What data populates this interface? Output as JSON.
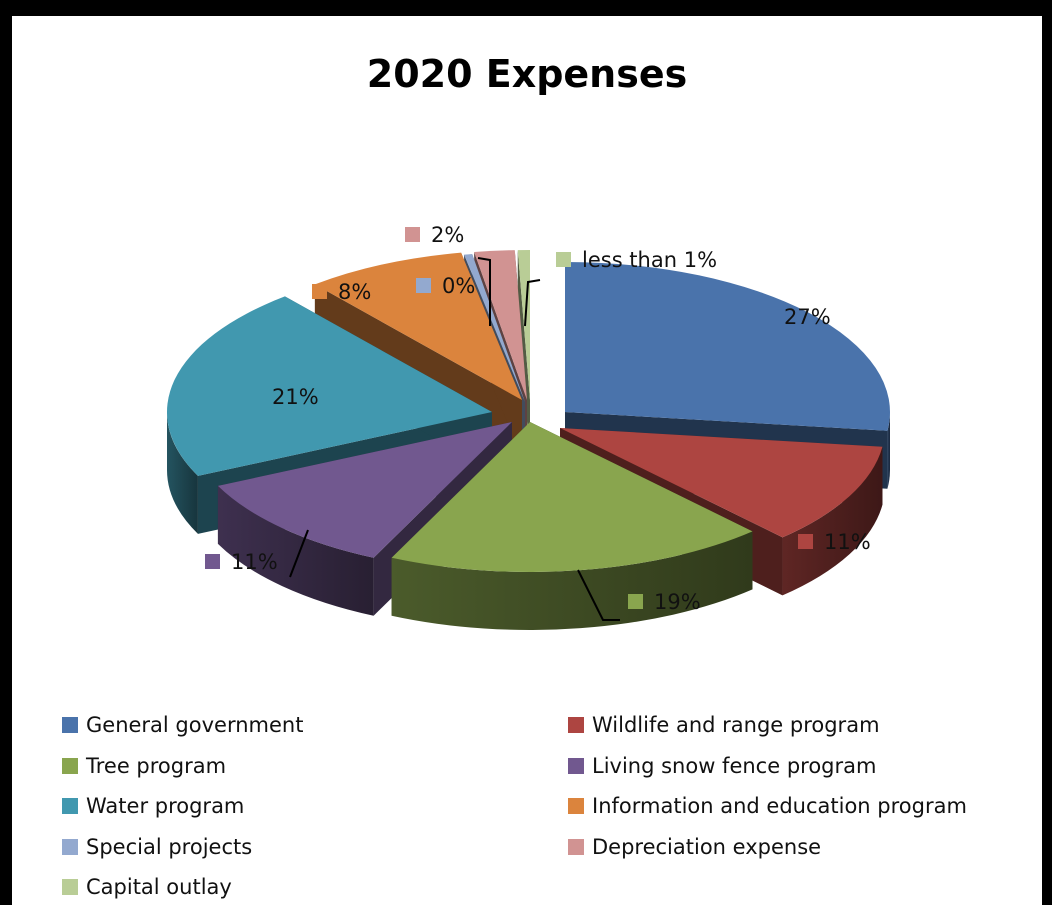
{
  "chart_data": {
    "type": "pie",
    "title": "2020 Expenses",
    "slices": [
      {
        "name": "General government",
        "value": 27,
        "label": "27%",
        "color": "#4A73AB"
      },
      {
        "name": "Wildlife and range program",
        "value": 11,
        "label": "11%",
        "color": "#AD4541"
      },
      {
        "name": "Tree program",
        "value": 19,
        "label": "19%",
        "color": "#89A54E"
      },
      {
        "name": "Living snow fence program",
        "value": 11,
        "label": "11%",
        "color": "#71588F"
      },
      {
        "name": "Water program",
        "value": 21,
        "label": "21%",
        "color": "#4198AF"
      },
      {
        "name": "Information and education program",
        "value": 8,
        "label": "8%",
        "color": "#DB843D"
      },
      {
        "name": "Special projects",
        "value": 0.4,
        "label": "0%",
        "color": "#93A9CF"
      },
      {
        "name": "Depreciation expense",
        "value": 2,
        "label": "2%",
        "color": "#D19392"
      },
      {
        "name": "Capital outlay",
        "value": 0.6,
        "label": "less than 1%",
        "color": "#B9CD96"
      }
    ],
    "legend_position": "bottom"
  }
}
